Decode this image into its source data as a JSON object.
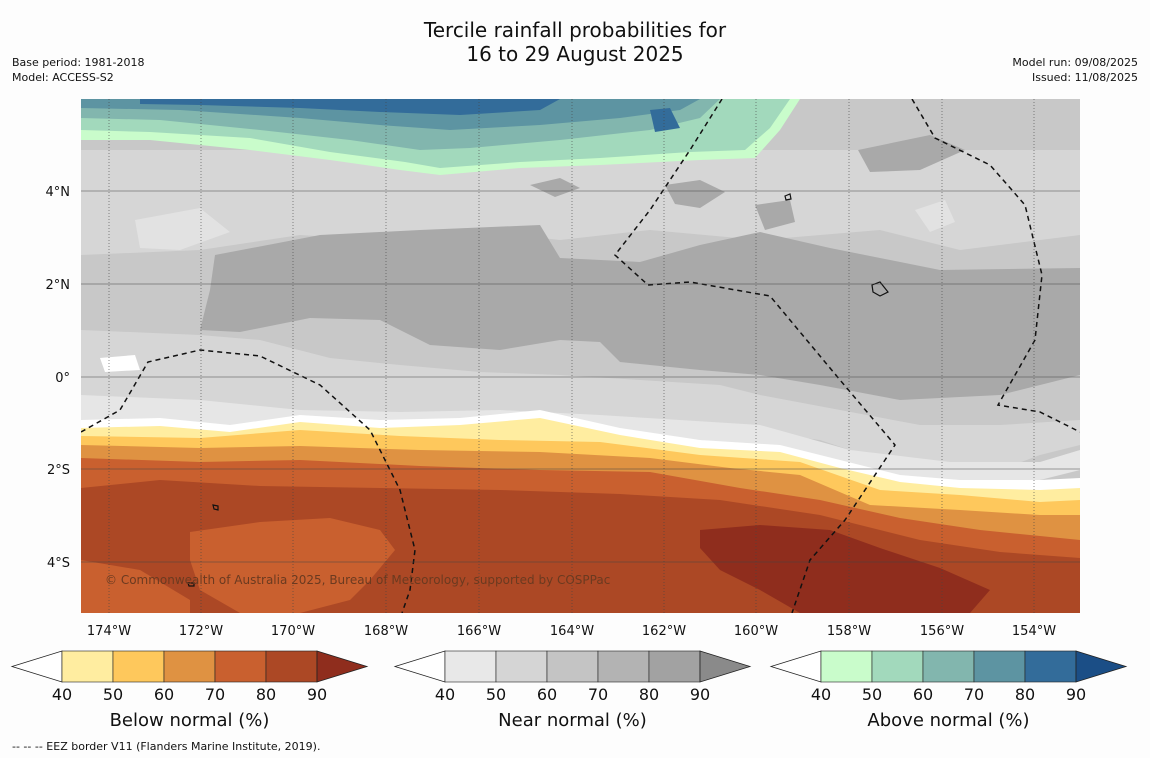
{
  "title": {
    "line1": "Tercile rainfall probabilities for",
    "line2": "16 to 29 August 2025"
  },
  "meta_left": {
    "base_period": "Base period: 1981-2018",
    "model": "Model: ACCESS-S2"
  },
  "meta_right": {
    "model_run": "Model run: 09/08/2025",
    "issued": "Issued: 11/08/2025"
  },
  "map": {
    "lon_labels": [
      "174°W",
      "172°W",
      "170°W",
      "168°W",
      "166°W",
      "164°W",
      "162°W",
      "160°W",
      "158°W",
      "156°W",
      "154°W"
    ],
    "lat_labels": [
      "4°N",
      "2°N",
      "0°",
      "2°S",
      "4°S"
    ],
    "copyright": "© Commonwealth of Australia 2025, Bureau of Meteorology, supported by COSPPac",
    "zones": [
      {
        "name": "above-normal-band",
        "category": "above",
        "level": 60
      },
      {
        "name": "near-normal-region",
        "category": "near",
        "level": 70
      },
      {
        "name": "below-normal-region",
        "category": "below",
        "level": 80
      }
    ]
  },
  "colorbars": [
    {
      "title": "Below normal (%)",
      "ticks": [
        "40",
        "50",
        "60",
        "70",
        "80",
        "90"
      ],
      "colors": [
        "#ffffff",
        "#ffeda0",
        "#fec85c",
        "#df9242",
        "#c9602f",
        "#ac4825",
        "#8f2d1d"
      ]
    },
    {
      "title": "Near normal (%)",
      "ticks": [
        "40",
        "50",
        "60",
        "70",
        "80",
        "90"
      ],
      "colors": [
        "#ffffff",
        "#e8e8e8",
        "#d5d5d5",
        "#c4c4c4",
        "#b3b3b3",
        "#a2a2a2",
        "#8a8a8a"
      ]
    },
    {
      "title": "Above normal (%)",
      "ticks": [
        "40",
        "50",
        "60",
        "70",
        "80",
        "90"
      ],
      "colors": [
        "#ffffff",
        "#c9fccb",
        "#a2d9bc",
        "#82b6ae",
        "#5d94a2",
        "#336c9a",
        "#1b4e86"
      ]
    }
  ],
  "footer": "--  --  -- EEZ border V11 (Flanders Marine Institute, 2019)."
}
